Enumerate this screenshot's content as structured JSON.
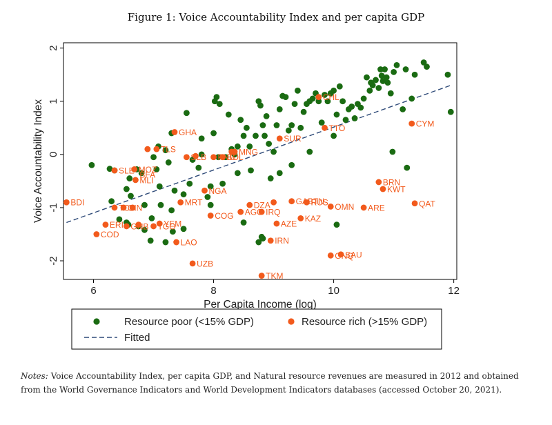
{
  "figure_title": "Figure 1: Voice Accountability Index and per capita GDP",
  "notes_lead": "Notes:",
  "notes_text": "Voice Accountability Index, per capita GDP, and Natural resource revenues are measured in 2012 and obtained from the World Governance Indicators and World Development Indicators databases (accessed October 20, 2021).",
  "colors": {
    "poor": "#1a6b12",
    "rich": "#f25a1c",
    "fit": "#2e4a78",
    "label": "#f25a1c"
  },
  "chart_data": {
    "type": "scatter",
    "xlabel": "Per Capita Income (log)",
    "ylabel": "Voice Accountability Index",
    "xlim": [
      5.5,
      12.05
    ],
    "ylim": [
      -2.35,
      2.1
    ],
    "xticks": [
      6,
      8,
      10,
      12
    ],
    "yticks": [
      -2,
      -1,
      0,
      1,
      2
    ],
    "legend": {
      "poor": "Resource poor (<15% GDP)",
      "rich": "Resource rich (>15% GDP)",
      "fit": "Fitted"
    },
    "fitted_line": {
      "x": [
        5.55,
        11.95
      ],
      "y": [
        -1.28,
        1.3
      ]
    },
    "series": [
      {
        "name": "Resource poor (<15% GDP)",
        "points": [
          [
            5.97,
            -0.2
          ],
          [
            6.27,
            -0.27
          ],
          [
            6.35,
            -0.3
          ],
          [
            6.3,
            -0.88
          ],
          [
            6.43,
            -1.22
          ],
          [
            6.55,
            -0.65
          ],
          [
            6.6,
            -0.45
          ],
          [
            6.62,
            -0.78
          ],
          [
            6.72,
            -0.28
          ],
          [
            6.8,
            -0.35
          ],
          [
            6.55,
            -1.28
          ],
          [
            6.58,
            -1.32
          ],
          [
            6.75,
            -1.35
          ],
          [
            6.85,
            -0.95
          ],
          [
            6.85,
            -1.42
          ],
          [
            6.97,
            -1.2
          ],
          [
            7.0,
            -0.05
          ],
          [
            7.05,
            -0.28
          ],
          [
            7.1,
            -0.6
          ],
          [
            7.12,
            -0.95
          ],
          [
            7.08,
            0.15
          ],
          [
            7.2,
            0.08
          ],
          [
            7.25,
            -0.15
          ],
          [
            7.3,
            0.4
          ],
          [
            7.3,
            -1.05
          ],
          [
            7.35,
            -0.68
          ],
          [
            7.32,
            -1.45
          ],
          [
            7.5,
            -1.4
          ],
          [
            7.55,
            0.78
          ],
          [
            7.6,
            -0.55
          ],
          [
            7.65,
            -0.1
          ],
          [
            7.75,
            -0.25
          ],
          [
            7.8,
            0.0
          ],
          [
            7.9,
            -0.8
          ],
          [
            7.95,
            -0.6
          ],
          [
            7.95,
            -0.95
          ],
          [
            8.0,
            0.4
          ],
          [
            8.02,
            1.0
          ],
          [
            8.05,
            1.08
          ],
          [
            8.1,
            0.95
          ],
          [
            8.08,
            -0.05
          ],
          [
            8.15,
            -0.55
          ],
          [
            8.2,
            -0.05
          ],
          [
            8.25,
            0.75
          ],
          [
            8.3,
            0.1
          ],
          [
            8.35,
            0.0
          ],
          [
            8.4,
            0.15
          ],
          [
            8.45,
            0.65
          ],
          [
            8.5,
            0.35
          ],
          [
            8.55,
            0.5
          ],
          [
            8.6,
            0.15
          ],
          [
            8.62,
            -0.3
          ],
          [
            8.7,
            0.35
          ],
          [
            8.75,
            1.0
          ],
          [
            8.78,
            0.92
          ],
          [
            8.8,
            -1.55
          ],
          [
            8.82,
            0.55
          ],
          [
            8.85,
            0.35
          ],
          [
            8.88,
            0.72
          ],
          [
            8.92,
            0.2
          ],
          [
            8.95,
            -0.45
          ],
          [
            9.0,
            0.05
          ],
          [
            9.05,
            0.55
          ],
          [
            9.1,
            0.85
          ],
          [
            9.15,
            1.1
          ],
          [
            9.2,
            1.08
          ],
          [
            9.25,
            0.45
          ],
          [
            9.3,
            0.55
          ],
          [
            9.35,
            0.95
          ],
          [
            9.4,
            1.2
          ],
          [
            9.45,
            0.5
          ],
          [
            9.5,
            0.8
          ],
          [
            9.55,
            0.95
          ],
          [
            9.6,
            1.0
          ],
          [
            9.65,
            1.05
          ],
          [
            9.7,
            1.15
          ],
          [
            9.75,
            1.0
          ],
          [
            9.8,
            0.6
          ],
          [
            9.85,
            1.12
          ],
          [
            9.9,
            1.0
          ],
          [
            9.95,
            1.15
          ],
          [
            10.0,
            1.2
          ],
          [
            10.05,
            0.75
          ],
          [
            10.1,
            1.28
          ],
          [
            10.15,
            1.0
          ],
          [
            10.2,
            0.65
          ],
          [
            10.25,
            0.85
          ],
          [
            10.3,
            0.9
          ],
          [
            10.35,
            0.68
          ],
          [
            10.4,
            0.95
          ],
          [
            10.45,
            0.88
          ],
          [
            10.5,
            1.05
          ],
          [
            10.55,
            1.45
          ],
          [
            10.6,
            1.2
          ],
          [
            10.62,
            1.35
          ],
          [
            10.65,
            1.3
          ],
          [
            10.7,
            1.4
          ],
          [
            10.75,
            1.25
          ],
          [
            10.78,
            1.6
          ],
          [
            10.8,
            1.48
          ],
          [
            10.82,
            1.38
          ],
          [
            10.85,
            1.6
          ],
          [
            10.88,
            1.45
          ],
          [
            10.9,
            1.35
          ],
          [
            10.95,
            1.15
          ],
          [
            11.0,
            1.55
          ],
          [
            11.05,
            1.68
          ],
          [
            11.15,
            0.85
          ],
          [
            11.2,
            1.6
          ],
          [
            11.3,
            1.05
          ],
          [
            11.35,
            1.5
          ],
          [
            11.5,
            1.73
          ],
          [
            11.55,
            1.65
          ],
          [
            11.9,
            1.5
          ],
          [
            11.95,
            0.8
          ],
          [
            10.98,
            0.05
          ],
          [
            11.22,
            -0.25
          ],
          [
            10.05,
            -1.32
          ],
          [
            8.5,
            -1.28
          ],
          [
            8.75,
            -1.65
          ],
          [
            8.82,
            -1.58
          ],
          [
            9.1,
            -0.35
          ],
          [
            9.3,
            -0.2
          ],
          [
            8.4,
            -0.35
          ],
          [
            7.5,
            -0.75
          ],
          [
            7.2,
            -1.65
          ],
          [
            6.95,
            -1.62
          ],
          [
            9.6,
            0.05
          ],
          [
            10.0,
            0.35
          ],
          [
            7.8,
            0.3
          ]
        ]
      },
      {
        "name": "Resource rich (>15% GDP)",
        "points": [
          [
            5.55,
            -0.9
          ],
          [
            6.2,
            -1.32
          ],
          [
            6.05,
            -1.5
          ],
          [
            6.35,
            -1.0
          ],
          [
            6.35,
            -0.3
          ],
          [
            6.55,
            -1.35
          ],
          [
            6.5,
            -1.0
          ],
          [
            6.65,
            -1.0
          ],
          [
            6.68,
            -0.28
          ],
          [
            6.7,
            -0.48
          ],
          [
            6.75,
            -1.32
          ],
          [
            6.9,
            0.1
          ],
          [
            7.0,
            -1.35
          ],
          [
            7.05,
            0.1
          ],
          [
            7.35,
            0.42
          ],
          [
            7.38,
            -1.65
          ],
          [
            7.45,
            -0.9
          ],
          [
            7.55,
            -0.05
          ],
          [
            7.65,
            -2.05
          ],
          [
            7.7,
            -0.03
          ],
          [
            7.85,
            -0.68
          ],
          [
            7.95,
            -1.15
          ],
          [
            8.0,
            -0.05
          ],
          [
            8.15,
            -0.05
          ],
          [
            8.35,
            0.05
          ],
          [
            8.45,
            -1.08
          ],
          [
            8.6,
            -0.95
          ],
          [
            8.8,
            -2.28
          ],
          [
            8.8,
            -1.08
          ],
          [
            8.95,
            -1.62
          ],
          [
            9.0,
            -0.9
          ],
          [
            9.05,
            -1.3
          ],
          [
            9.1,
            0.3
          ],
          [
            9.3,
            -0.88
          ],
          [
            9.45,
            -1.2
          ],
          [
            9.55,
            -0.9
          ],
          [
            9.75,
            1.08
          ],
          [
            9.85,
            0.5
          ],
          [
            9.95,
            -0.98
          ],
          [
            9.95,
            -1.9
          ],
          [
            10.12,
            -1.88
          ],
          [
            10.5,
            -1.0
          ],
          [
            10.75,
            -0.52
          ],
          [
            10.82,
            -0.65
          ],
          [
            11.3,
            0.58
          ],
          [
            11.35,
            -0.92
          ],
          [
            7.1,
            -1.3
          ],
          [
            8.3,
            0.05
          ]
        ]
      }
    ],
    "annotations": [
      {
        "text": "BDI",
        "x": 5.55,
        "y": -0.9
      },
      {
        "text": "COD",
        "x": 6.05,
        "y": -1.5
      },
      {
        "text": "ERI",
        "x": 6.2,
        "y": -1.32
      },
      {
        "text": "TCD",
        "x": 6.35,
        "y": -1.0
      },
      {
        "text": "GIN",
        "x": 6.5,
        "y": -1.0
      },
      {
        "text": "GNB",
        "x": 6.55,
        "y": -1.35
      },
      {
        "text": "SLE",
        "x": 6.35,
        "y": -0.3
      },
      {
        "text": "MOZ",
        "x": 6.68,
        "y": -0.28
      },
      {
        "text": "BFA",
        "x": 6.7,
        "y": -0.38
      },
      {
        "text": "MLI",
        "x": 6.7,
        "y": -0.48
      },
      {
        "text": "TGO",
        "x": 7.0,
        "y": -1.35
      },
      {
        "text": "YEM",
        "x": 7.1,
        "y": -1.3
      },
      {
        "text": "TLS",
        "x": 7.05,
        "y": 0.1
      },
      {
        "text": "GHA",
        "x": 7.35,
        "y": 0.42
      },
      {
        "text": "LAO",
        "x": 7.38,
        "y": -1.65
      },
      {
        "text": "MRT",
        "x": 7.45,
        "y": -0.9
      },
      {
        "text": "UZB",
        "x": 7.65,
        "y": -2.05
      },
      {
        "text": "SLB",
        "x": 7.55,
        "y": -0.05
      },
      {
        "text": "NGA",
        "x": 7.85,
        "y": -0.68
      },
      {
        "text": "COG",
        "x": 7.95,
        "y": -1.15
      },
      {
        "text": "PNG",
        "x": 8.0,
        "y": -0.05
      },
      {
        "text": "BOL",
        "x": 8.15,
        "y": -0.05
      },
      {
        "text": "MNG",
        "x": 8.35,
        "y": 0.05
      },
      {
        "text": "AGO",
        "x": 8.45,
        "y": -1.08
      },
      {
        "text": "DZA",
        "x": 8.6,
        "y": -0.95
      },
      {
        "text": "TKM",
        "x": 8.8,
        "y": -2.28
      },
      {
        "text": "IRQ",
        "x": 8.8,
        "y": -1.08
      },
      {
        "text": "IRN",
        "x": 8.95,
        "y": -1.62
      },
      {
        "text": "AZE",
        "x": 9.05,
        "y": -1.3
      },
      {
        "text": "SUR",
        "x": 9.1,
        "y": 0.3
      },
      {
        "text": "GAB",
        "x": 9.3,
        "y": -0.88
      },
      {
        "text": "KAZ",
        "x": 9.45,
        "y": -1.2
      },
      {
        "text": "BRN",
        "x": 10.75,
        "y": -0.52
      },
      {
        "text": "KWT",
        "x": 10.82,
        "y": -0.65
      },
      {
        "text": "RUS",
        "x": 9.55,
        "y": -0.9
      },
      {
        "text": "CHL",
        "x": 9.75,
        "y": 1.08
      },
      {
        "text": "TTO",
        "x": 9.85,
        "y": 0.5
      },
      {
        "text": "OMN",
        "x": 9.95,
        "y": -0.98
      },
      {
        "text": "GNQ",
        "x": 9.95,
        "y": -1.9
      },
      {
        "text": "SAU",
        "x": 10.12,
        "y": -1.88
      },
      {
        "text": "ARE",
        "x": 10.5,
        "y": -1.0
      },
      {
        "text": "CYM",
        "x": 11.3,
        "y": 0.58
      },
      {
        "text": "QAT",
        "x": 11.35,
        "y": -0.92
      },
      {
        "text": "BTN",
        "x": 9.5,
        "y": -0.88
      }
    ]
  }
}
